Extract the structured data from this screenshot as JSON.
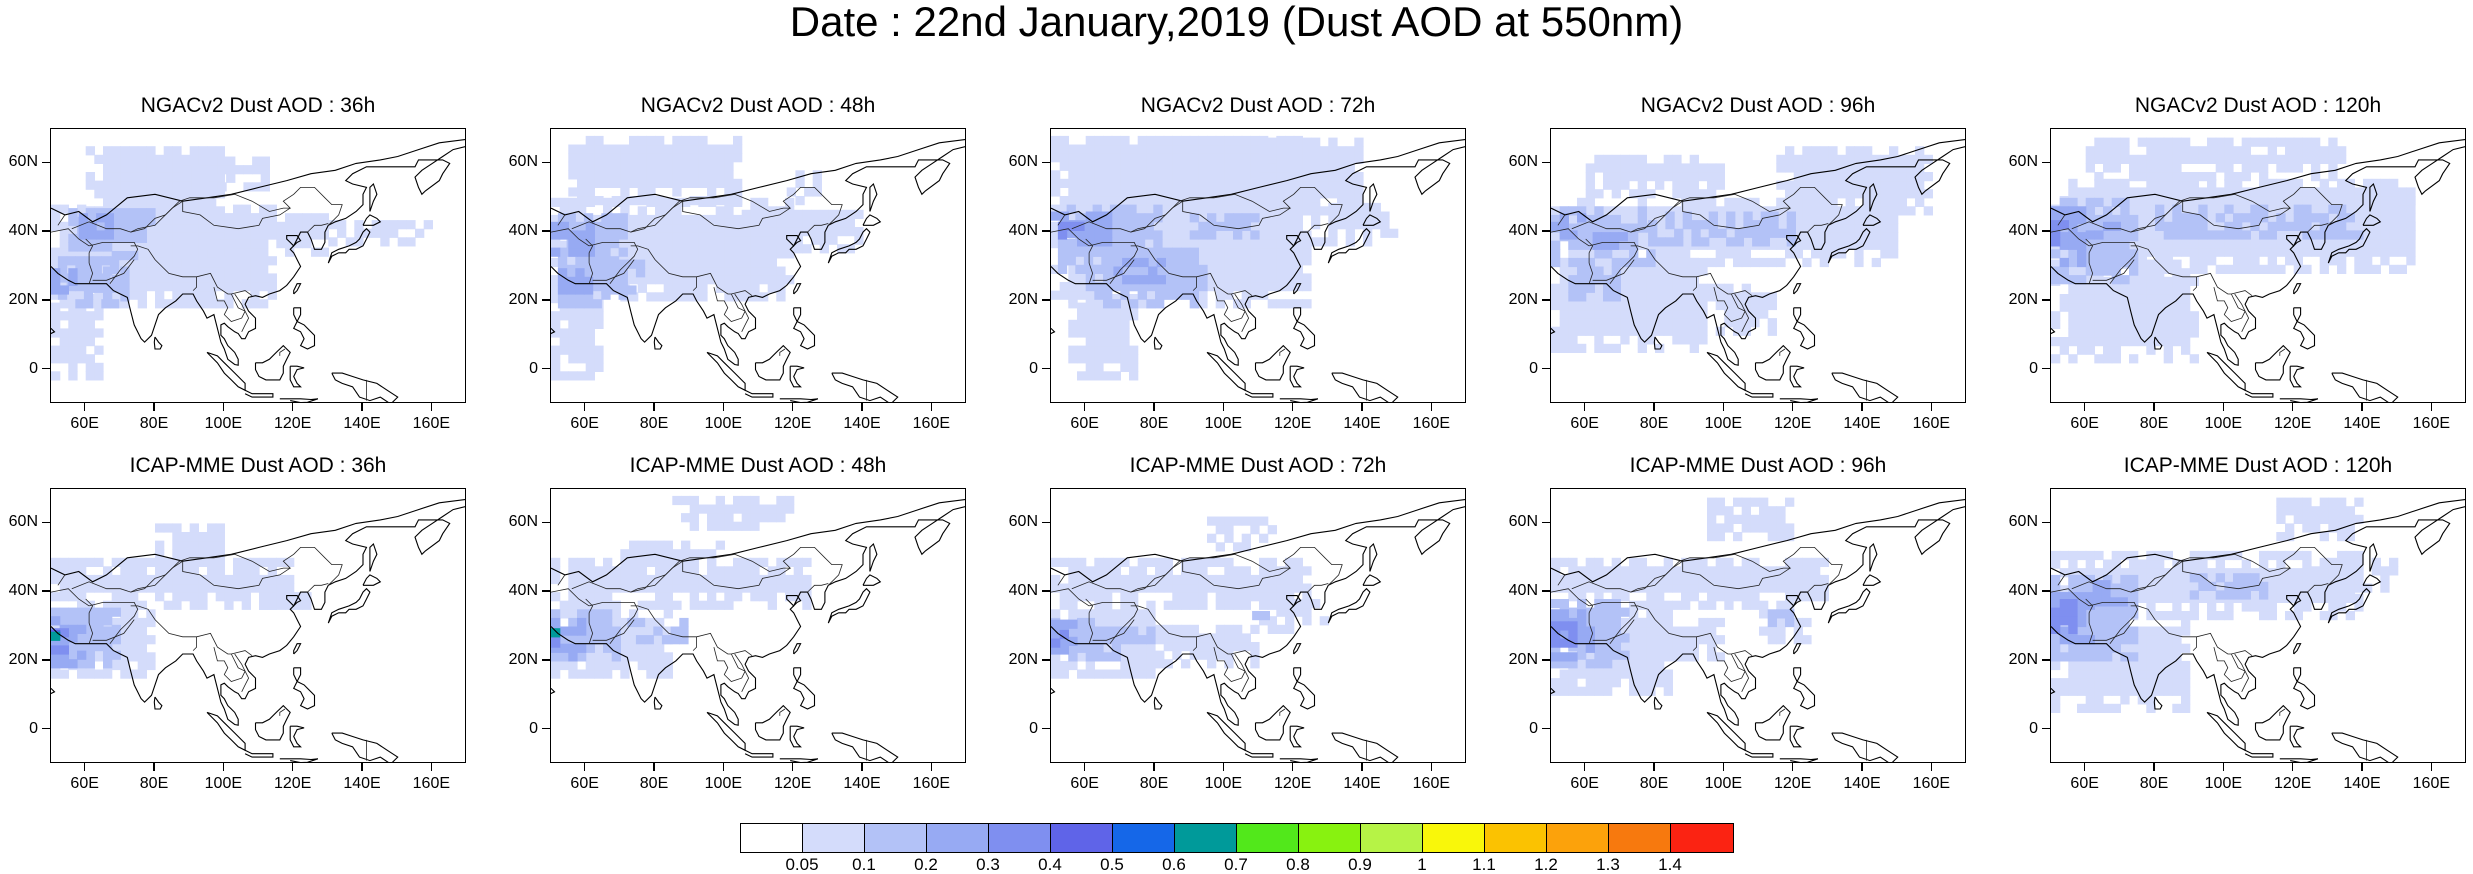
{
  "title": "Date : 22nd January,2019 (Dust AOD at 550nm)",
  "rows": [
    {
      "panels": [
        {
          "title": "NGACv2 Dust AOD : 36h",
          "dust_pattern": "ngac_36"
        },
        {
          "title": "NGACv2 Dust AOD : 48h",
          "dust_pattern": "ngac_48"
        },
        {
          "title": "NGACv2 Dust AOD : 72h",
          "dust_pattern": "ngac_72"
        },
        {
          "title": "NGACv2 Dust AOD : 96h",
          "dust_pattern": "ngac_96"
        },
        {
          "title": "NGACv2 Dust AOD : 120h",
          "dust_pattern": "ngac_120"
        }
      ]
    },
    {
      "panels": [
        {
          "title": "ICAP-MME Dust AOD : 36h",
          "dust_pattern": "icap_36"
        },
        {
          "title": "ICAP-MME Dust AOD : 48h",
          "dust_pattern": "icap_48"
        },
        {
          "title": "ICAP-MME Dust AOD : 72h",
          "dust_pattern": "icap_72"
        },
        {
          "title": "ICAP-MME Dust AOD : 96h",
          "dust_pattern": "icap_96"
        },
        {
          "title": "ICAP-MME Dust AOD : 120h",
          "dust_pattern": "icap_120"
        }
      ]
    }
  ],
  "map_extent": {
    "lon_range": [
      50,
      170
    ],
    "lat_range": [
      -10,
      70
    ]
  },
  "lon_ticks": [
    "60E",
    "80E",
    "100E",
    "120E",
    "140E",
    "160E"
  ],
  "lat_ticks": [
    "60N",
    "40N",
    "20N",
    "0"
  ],
  "colorbar": {
    "colors": [
      "#ffffff",
      "#d4dcfb",
      "#b3c2f7",
      "#97aaf3",
      "#7f8ff0",
      "#5f64e8",
      "#1567e8",
      "#009a9a",
      "#52e81b",
      "#88f210",
      "#b6f346",
      "#f9f70a",
      "#fbc201",
      "#fca20b",
      "#f7790e",
      "#fb2312"
    ],
    "labels": [
      "0.05",
      "0.1",
      "0.2",
      "0.3",
      "0.4",
      "0.5",
      "0.6",
      "0.7",
      "0.8",
      "0.9",
      "1",
      "1.1",
      "1.2",
      "1.3",
      "1.4"
    ]
  }
}
